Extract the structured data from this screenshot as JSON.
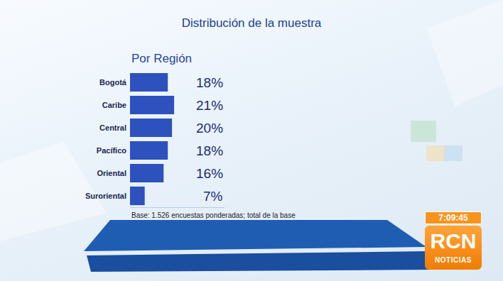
{
  "chart_data": {
    "type": "bar",
    "orientation": "horizontal",
    "title": "Distribución de la muestra",
    "subtitle": "Por Región",
    "categories": [
      "Bogotá",
      "Caribe",
      "Central",
      "Pacífico",
      "Oriental",
      "Suroriental"
    ],
    "values": [
      18,
      21,
      20,
      18,
      16,
      7
    ],
    "value_labels": [
      "18%",
      "21%",
      "20%",
      "18%",
      "16%",
      "7%"
    ],
    "data_labels": true,
    "color": "#2d52bd",
    "xlim": [
      0,
      45
    ],
    "xticks": [],
    "grid": false,
    "tick_labels": "y",
    "annotations": [
      "Base: 1.526 encuestas ponderadas; total de la base"
    ]
  },
  "overlay": {
    "clock": "7:09:45",
    "logo": "RCN",
    "logo_caption": "NOTICIAS"
  }
}
